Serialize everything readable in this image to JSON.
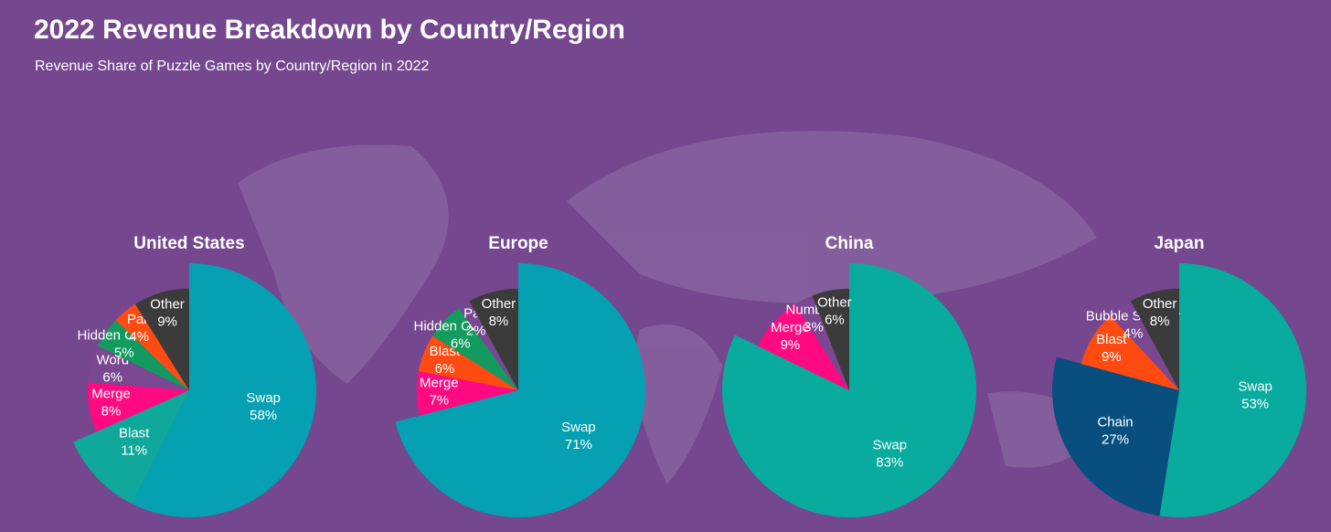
{
  "header": {
    "title": "2022 Revenue Breakdown by Country/Region",
    "subtitle": "Revenue Share of Puzzle Games by Country/Region in 2022"
  },
  "chart_data": [
    {
      "type": "pie",
      "title": "United States",
      "categories": [
        "Swap",
        "Blast",
        "Merge",
        "Word",
        "Hidden Objects",
        "Pair",
        "Other"
      ],
      "values": [
        58,
        11,
        8,
        6,
        5,
        4,
        9
      ],
      "value_labels": [
        "58%",
        "11%",
        "8%",
        "6%",
        "5%",
        "4%",
        "9%"
      ],
      "colors": [
        "#05a0b2",
        "#0fa89a",
        "#ff0a80",
        "#7a4791",
        "#139a5e",
        "#ff4b12",
        "#3b3b3b"
      ]
    },
    {
      "type": "pie",
      "title": "Europe",
      "categories": [
        "Swap",
        "Merge",
        "Blast",
        "Hidden Objects",
        "Pair",
        "Other"
      ],
      "values": [
        71,
        7,
        6,
        6,
        2,
        8
      ],
      "value_labels": [
        "71%",
        "7%",
        "6%",
        "6%",
        "2%",
        "8%"
      ],
      "colors": [
        "#05a0b2",
        "#ff0a80",
        "#ff4b12",
        "#139a5e",
        "#7a4791",
        "#3b3b3b"
      ]
    },
    {
      "type": "pie",
      "title": "China",
      "categories": [
        "Swap",
        "Merge",
        "Numbers",
        "Other"
      ],
      "values": [
        83,
        9,
        3,
        6
      ],
      "value_labels": [
        "83%",
        "9%",
        "3%",
        "6%"
      ],
      "colors": [
        "#08ab9e",
        "#ff0a80",
        "#7a4791",
        "#3b3b3b"
      ]
    },
    {
      "type": "pie",
      "title": "Japan",
      "categories": [
        "Swap",
        "Chain",
        "Blast",
        "Bubble Shooter",
        "Other"
      ],
      "values": [
        53,
        27,
        9,
        4,
        8
      ],
      "value_labels": [
        "53%",
        "27%",
        "9%",
        "4%",
        "8%"
      ],
      "colors": [
        "#08ab9e",
        "#084f80",
        "#ff4b12",
        "#7a4791",
        "#3b3b3b"
      ]
    }
  ]
}
